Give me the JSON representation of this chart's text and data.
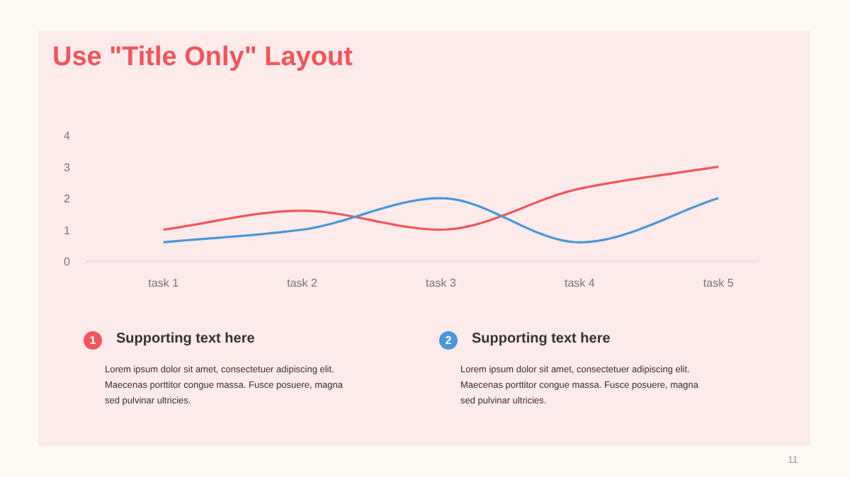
{
  "chart_data": {
    "type": "line",
    "title": "Use \"Title Only\" Layout",
    "categories": [
      "task 1",
      "task 2",
      "task 3",
      "task 4",
      "task 5"
    ],
    "series": [
      {
        "color": "#f2555a",
        "values": [
          1,
          1.6,
          1,
          2.3,
          3
        ]
      },
      {
        "color": "#4a97d9",
        "values": [
          0.6,
          1,
          2,
          0.6,
          2
        ]
      }
    ],
    "ylim": [
      0,
      4
    ],
    "yticks": [
      0,
      1,
      2,
      3,
      4
    ],
    "grid": false,
    "marker": "none",
    "line_style": "solid",
    "annotations": [
      "1",
      "Supporting text here",
      "Lorem ipsum dolor sit amet, consectetuer adipiscing elit.\nMaecenas porttitor congue massa. Fusce posuere, magna\nsed pulvinar ultricies.",
      "2",
      "Supporting text here",
      "Lorem ipsum dolor sit amet, consectetuer adipiscing elit.\nMaecenas porttitor congue massa. Fusce posuere, magna\nsed pulvinar ultricies.",
      "11"
    ]
  }
}
